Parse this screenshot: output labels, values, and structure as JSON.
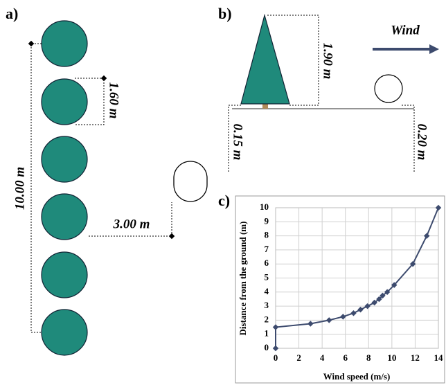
{
  "panel_a": {
    "label": "a)",
    "spacing_total": "10.00 m",
    "spacing_tree": "1.60 m",
    "distance": "3.00 m"
  },
  "panel_b": {
    "label": "b)",
    "height": "1.90 m",
    "wind": "Wind",
    "left_depth": "0.15 m",
    "right_depth": "0.20 m"
  },
  "chart_data": {
    "type": "line",
    "title": "c)",
    "x_label": "Wind speed (m/s)",
    "y_label": "Distance from the ground (m)",
    "x": [
      0,
      0,
      3.0,
      4.6,
      5.8,
      6.7,
      7.3,
      7.9,
      8.5,
      8.9,
      9.2,
      9.6,
      10.2,
      11.8,
      13.0,
      14.0
    ],
    "series": [
      {
        "color": "#3d4b6e",
        "values": [
          0,
          1.5,
          1.75,
          2.0,
          2.25,
          2.5,
          2.75,
          3.0,
          3.25,
          3.5,
          3.75,
          4.0,
          4.5,
          6.0,
          8.0,
          10.0
        ]
      }
    ],
    "xlim": [
      0,
      14
    ],
    "ylim": [
      0,
      10
    ],
    "xticks": [
      0,
      2,
      4,
      6,
      8,
      10,
      12,
      14
    ],
    "yticks": [
      0,
      1,
      2,
      3,
      4,
      5,
      6,
      7,
      8,
      9,
      10
    ],
    "grid": true
  }
}
